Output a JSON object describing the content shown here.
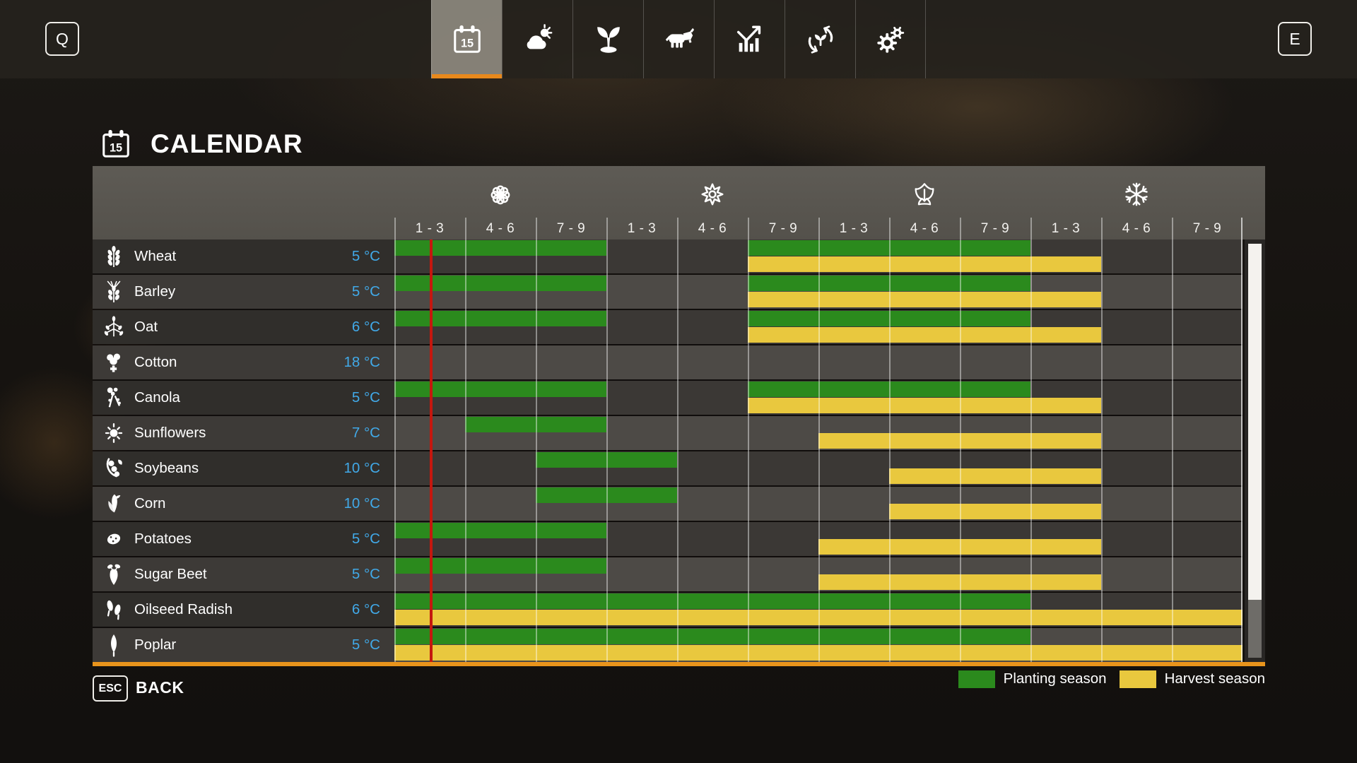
{
  "topbar": {
    "left_key": "Q",
    "right_key": "E",
    "tabs": [
      {
        "id": "calendar",
        "icon": "calendar-15-icon",
        "active": true
      },
      {
        "id": "weather",
        "icon": "weather-icon",
        "active": false
      },
      {
        "id": "crops",
        "icon": "seedling-icon",
        "active": false
      },
      {
        "id": "animals",
        "icon": "cow-icon",
        "active": false
      },
      {
        "id": "finances",
        "icon": "finances-chart-icon",
        "active": false
      },
      {
        "id": "crop-rotation",
        "icon": "crop-rotation-icon",
        "active": false
      },
      {
        "id": "settings",
        "icon": "gears-icon",
        "active": false
      }
    ]
  },
  "page": {
    "title": "CALENDAR",
    "title_icon": "calendar-15-icon"
  },
  "calendar": {
    "seasons": [
      {
        "name": "spring",
        "icon": "flower-icon"
      },
      {
        "name": "summer",
        "icon": "sun-icon"
      },
      {
        "name": "autumn",
        "icon": "leaf-icon"
      },
      {
        "name": "winter",
        "icon": "snowflake-icon"
      }
    ],
    "period_labels": [
      "1 - 3",
      "4 - 6",
      "7 - 9",
      "1 - 3",
      "4 - 6",
      "7 - 9",
      "1 - 3",
      "4 - 6",
      "7 - 9",
      "1 - 3",
      "4 - 6",
      "7 - 9"
    ],
    "columns_per_season": 3,
    "crops": [
      {
        "name": "Wheat",
        "min_temp": "5 °C",
        "icon": "wheat-icon",
        "planting_periods": [
          [
            1,
            3
          ],
          [
            6,
            9
          ]
        ],
        "harvest_periods": [
          [
            6,
            10
          ]
        ]
      },
      {
        "name": "Barley",
        "min_temp": "5 °C",
        "icon": "barley-icon",
        "planting_periods": [
          [
            1,
            3
          ],
          [
            6,
            9
          ]
        ],
        "harvest_periods": [
          [
            6,
            10
          ]
        ]
      },
      {
        "name": "Oat",
        "min_temp": "6 °C",
        "icon": "oat-icon",
        "planting_periods": [
          [
            1,
            3
          ],
          [
            6,
            9
          ]
        ],
        "harvest_periods": [
          [
            6,
            10
          ]
        ]
      },
      {
        "name": "Cotton",
        "min_temp": "18 °C",
        "icon": "cotton-icon",
        "planting_periods": [],
        "harvest_periods": []
      },
      {
        "name": "Canola",
        "min_temp": "5 °C",
        "icon": "canola-icon",
        "planting_periods": [
          [
            1,
            3
          ],
          [
            6,
            9
          ]
        ],
        "harvest_periods": [
          [
            6,
            10
          ]
        ]
      },
      {
        "name": "Sunflowers",
        "min_temp": "7 °C",
        "icon": "sunflower-icon",
        "planting_periods": [
          [
            2,
            3
          ]
        ],
        "harvest_periods": [
          [
            7,
            10
          ]
        ]
      },
      {
        "name": "Soybeans",
        "min_temp": "10 °C",
        "icon": "soybeans-icon",
        "planting_periods": [
          [
            3,
            4
          ]
        ],
        "harvest_periods": [
          [
            8,
            10
          ]
        ]
      },
      {
        "name": "Corn",
        "min_temp": "10 °C",
        "icon": "corn-icon",
        "planting_periods": [
          [
            3,
            4
          ]
        ],
        "harvest_periods": [
          [
            8,
            10
          ]
        ]
      },
      {
        "name": "Potatoes",
        "min_temp": "5 °C",
        "icon": "potatoes-icon",
        "planting_periods": [
          [
            1,
            3
          ]
        ],
        "harvest_periods": [
          [
            7,
            10
          ]
        ]
      },
      {
        "name": "Sugar Beet",
        "min_temp": "5 °C",
        "icon": "sugar-beet-icon",
        "planting_periods": [
          [
            1,
            3
          ]
        ],
        "harvest_periods": [
          [
            7,
            10
          ]
        ]
      },
      {
        "name": "Oilseed Radish",
        "min_temp": "6 °C",
        "icon": "oilseed-radish-icon",
        "planting_periods": [
          [
            1,
            9
          ]
        ],
        "harvest_periods": [
          [
            1,
            12
          ]
        ]
      },
      {
        "name": "Poplar",
        "min_temp": "5 °C",
        "icon": "poplar-icon",
        "planting_periods": [
          [
            1,
            9
          ]
        ],
        "harvest_periods": [
          [
            1,
            12
          ]
        ]
      }
    ],
    "current_period_marker": {
      "column": 1,
      "fraction": 0.52
    },
    "legend": [
      {
        "label": "Planting season",
        "type": "planting"
      },
      {
        "label": "Harvest season",
        "type": "harvest"
      }
    ]
  },
  "footer": {
    "key": "ESC",
    "label": "BACK"
  },
  "colors": {
    "planting": "#2b8a1d",
    "harvest": "#e9c83e",
    "accent_orange": "#e8941c",
    "temperature_blue": "#41a9e8",
    "current_line_red": "#c5170e"
  }
}
